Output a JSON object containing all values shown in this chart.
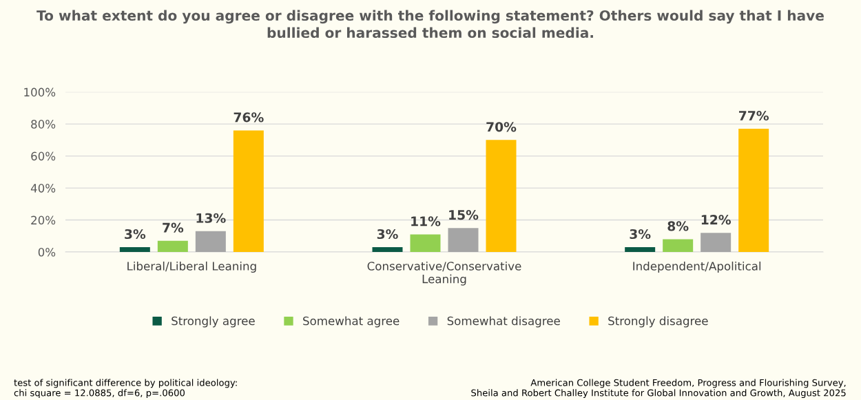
{
  "chart_data": {
    "type": "bar",
    "title": "To what extent do you agree or disagree with the following statement? Others would say that I have bullied or harassed them on social media.",
    "categories": [
      "Liberal/Liberal Leaning",
      "Conservative/Conservative\nLeaning",
      "Independent/Apolitical"
    ],
    "series": [
      {
        "name": "Strongly agree",
        "color": "#0b5a45",
        "values": [
          3,
          3,
          3
        ],
        "value_labels": [
          "3%",
          "3%",
          "3%"
        ]
      },
      {
        "name": "Somewhat agree",
        "color": "#92d050",
        "values": [
          7,
          11,
          8
        ],
        "value_labels": [
          "7%",
          "11%",
          "8%"
        ]
      },
      {
        "name": "Somewhat disagree",
        "color": "#a5a5a5",
        "values": [
          13,
          15,
          12
        ],
        "value_labels": [
          "13%",
          "15%",
          "12%"
        ]
      },
      {
        "name": "Strongly disagree",
        "color": "#ffc000",
        "values": [
          76,
          70,
          77
        ],
        "value_labels": [
          "76%",
          "70%",
          "77%"
        ]
      }
    ],
    "ylim": [
      0,
      100
    ],
    "yticks": [
      {
        "value": 0,
        "label": "0%"
      },
      {
        "value": 20,
        "label": "20%"
      },
      {
        "value": 40,
        "label": "40%"
      },
      {
        "value": 60,
        "label": "60%"
      },
      {
        "value": 80,
        "label": "80%"
      },
      {
        "value": 100,
        "label": "100%"
      }
    ],
    "grid": "y",
    "legend": "bottom",
    "annotations": [
      "test of significant difference by political ideology:\nchi square = 12.0885, df=6, p=.0600",
      "American College Student Freedom, Progress and Flourishing Survey,\nSheila and Robert Challey Institute for Global Innovation and Growth, August 2025"
    ]
  }
}
